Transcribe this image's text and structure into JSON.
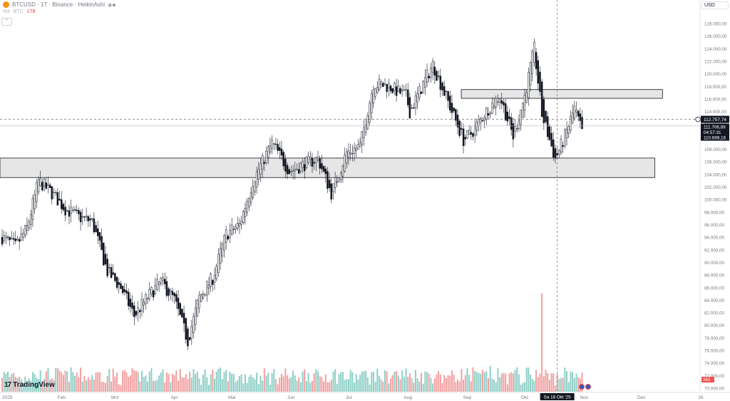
{
  "header": {
    "symbol_line": "BTCUSD · 1T · Binance · HeikinAshi",
    "symbol_icon": "bitcoin-icon",
    "vol_label": "Vol",
    "vol_currency": "BTC",
    "vol_value": "178",
    "collapse_glyph": "⌃"
  },
  "currency_button": "USD",
  "watermark": "TradingView",
  "crosshair_date": "Sa 18 Okt '25",
  "volume_axis_label": "263",
  "price_axis": {
    "ticks": [
      "128.000,00",
      "126.000,00",
      "124.000,00",
      "122.000,00",
      "120.000,00",
      "118.000,00",
      "116.000,00",
      "114.000,00",
      "112.000,00",
      "110.000,00",
      "108.000,00",
      "106.000,00",
      "104.000,00",
      "102.000,00",
      "100.000,00",
      "98.000,00",
      "96.000,00",
      "94.000,00",
      "92.000,00",
      "90.000,00",
      "88.000,00",
      "86.000,00",
      "84.000,00",
      "82.000,00",
      "80.000,00",
      "78.000,00",
      "76.000,00",
      "74.000,00",
      "72.000,00",
      "70.000,00"
    ],
    "crosshair_label": "112.757,74",
    "current_price": "111.706,89",
    "countdown": "04:57:31",
    "ha_close": "110.699,16"
  },
  "time_axis": [
    "2025",
    "Feb",
    "Mrz",
    "Apr",
    "Mai",
    "Jun",
    "Jul",
    "Aug",
    "Sep",
    "Okt",
    "Nov",
    "Dez",
    "26"
  ],
  "colors": {
    "up": "#26a69a",
    "down": "#ef5350",
    "candle": "#131722",
    "zone_fill": "#e6e6e6",
    "zone_border": "#2a2e39",
    "vol_up": "#8fcfc7",
    "vol_down": "#f2a0a0"
  },
  "chart_data": {
    "type": "candlestick",
    "style": "HeikinAshi",
    "timeframe": "1T",
    "exchange": "Binance",
    "symbol": "BTCUSD",
    "ylim": [
      70000,
      129500
    ],
    "x_range": [
      "2025-01-01",
      "2026-01-01"
    ],
    "close_path": [
      {
        "date": "2025-01-01",
        "close": 94000
      },
      {
        "date": "2025-01-08",
        "close": 92500
      },
      {
        "date": "2025-01-14",
        "close": 95500
      },
      {
        "date": "2025-01-20",
        "close": 103000
      },
      {
        "date": "2025-01-27",
        "close": 101000
      },
      {
        "date": "2025-02-03",
        "close": 98500
      },
      {
        "date": "2025-02-10",
        "close": 97200
      },
      {
        "date": "2025-02-17",
        "close": 96500
      },
      {
        "date": "2025-02-25",
        "close": 88500
      },
      {
        "date": "2025-03-04",
        "close": 86000
      },
      {
        "date": "2025-03-11",
        "close": 81500
      },
      {
        "date": "2025-03-18",
        "close": 84500
      },
      {
        "date": "2025-03-25",
        "close": 87000
      },
      {
        "date": "2025-04-01",
        "close": 84000
      },
      {
        "date": "2025-04-08",
        "close": 77500
      },
      {
        "date": "2025-04-14",
        "close": 84500
      },
      {
        "date": "2025-04-21",
        "close": 87500
      },
      {
        "date": "2025-04-28",
        "close": 94500
      },
      {
        "date": "2025-05-05",
        "close": 96000
      },
      {
        "date": "2025-05-12",
        "close": 103000
      },
      {
        "date": "2025-05-22",
        "close": 109000
      },
      {
        "date": "2025-05-31",
        "close": 104500
      },
      {
        "date": "2025-06-07",
        "close": 105500
      },
      {
        "date": "2025-06-15",
        "close": 106500
      },
      {
        "date": "2025-06-22",
        "close": 101000
      },
      {
        "date": "2025-06-30",
        "close": 107500
      },
      {
        "date": "2025-07-07",
        "close": 108500
      },
      {
        "date": "2025-07-14",
        "close": 118500
      },
      {
        "date": "2025-07-22",
        "close": 118000
      },
      {
        "date": "2025-07-31",
        "close": 116500
      },
      {
        "date": "2025-08-02",
        "close": 114000
      },
      {
        "date": "2025-08-14",
        "close": 121500
      },
      {
        "date": "2025-08-22",
        "close": 115500
      },
      {
        "date": "2025-08-30",
        "close": 109500
      },
      {
        "date": "2025-09-03",
        "close": 110500
      },
      {
        "date": "2025-09-12",
        "close": 114500
      },
      {
        "date": "2025-09-18",
        "close": 116500
      },
      {
        "date": "2025-09-25",
        "close": 110000
      },
      {
        "date": "2025-10-01",
        "close": 116500
      },
      {
        "date": "2025-10-06",
        "close": 124000
      },
      {
        "date": "2025-10-10",
        "close": 113500
      },
      {
        "date": "2025-10-17",
        "close": 106500
      },
      {
        "date": "2025-10-22",
        "close": 110000
      },
      {
        "date": "2025-10-27",
        "close": 114500
      },
      {
        "date": "2025-10-31",
        "close": 110700
      }
    ],
    "zones": [
      {
        "from": "2025-01-01",
        "to": "2025-12-08",
        "low": 103500,
        "high": 106600
      },
      {
        "from": "2025-08-30",
        "to": "2025-12-12",
        "low": 116100,
        "high": 117500
      }
    ],
    "volume_spike": {
      "date": "2025-10-10",
      "level": "high"
    },
    "crosshair": {
      "date": "2025-10-18",
      "price": 112757.74
    },
    "last_price": 111706.89
  }
}
